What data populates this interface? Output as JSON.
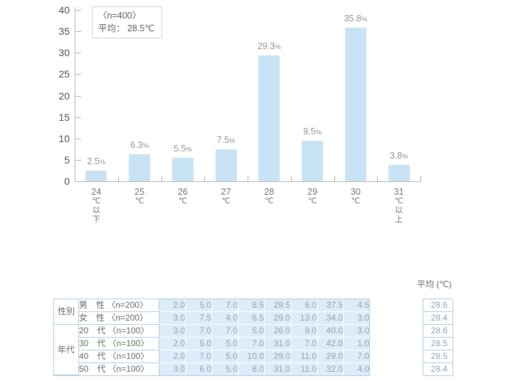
{
  "chart_data": {
    "type": "bar",
    "title": "",
    "legend_box": {
      "line1": "〈n=400〉",
      "line2": "平均： 28.5℃"
    },
    "categories": [
      "24℃以下",
      "25℃",
      "26℃",
      "27℃",
      "28℃",
      "29℃",
      "30℃",
      "31℃以上"
    ],
    "category_label_lines": [
      [
        "24",
        "℃",
        "以",
        "下"
      ],
      [
        "25",
        "℃"
      ],
      [
        "26",
        "℃"
      ],
      [
        "27",
        "℃"
      ],
      [
        "28",
        "℃"
      ],
      [
        "29",
        "℃"
      ],
      [
        "30",
        "℃"
      ],
      [
        "31",
        "℃",
        "以",
        "上"
      ]
    ],
    "values": [
      2.5,
      6.3,
      5.5,
      7.5,
      29.3,
      9.5,
      35.8,
      3.8
    ],
    "value_labels": [
      "2.5%",
      "6.3%",
      "5.5%",
      "7.5%",
      "29.3%",
      "9.5%",
      "35.8%",
      "3.8%"
    ],
    "unit": "%",
    "xlabel": "",
    "ylabel": "",
    "ylim": [
      0,
      40
    ],
    "yticks": [
      0,
      5,
      10,
      15,
      20,
      25,
      30,
      35,
      40
    ],
    "grid": false,
    "legend_position": "top-left"
  },
  "table": {
    "mean_header": "平均 (℃)",
    "row_groups": [
      {
        "label": "性別",
        "span": 2
      },
      {
        "label": "年代",
        "span": 4
      }
    ],
    "rows": [
      {
        "label": "男　性 〈n=200〉",
        "values": [
          "2.0",
          "5.0",
          "7.0",
          "8.5",
          "29.5",
          "6.0",
          "37.5",
          "4.5"
        ],
        "mean": "28.6"
      },
      {
        "label": "女　性 〈n=200〉",
        "values": [
          "3.0",
          "7.5",
          "4.0",
          "6.5",
          "29.0",
          "13.0",
          "34.0",
          "3.0"
        ],
        "mean": "28.4"
      },
      {
        "label": "20　代 〈n=100〉",
        "values": [
          "3.0",
          "7.0",
          "7.0",
          "5.0",
          "26.0",
          "9.0",
          "40.0",
          "3.0"
        ],
        "mean": "28.6"
      },
      {
        "label": "30　代 〈n=100〉",
        "values": [
          "2.0",
          "5.0",
          "5.0",
          "7.0",
          "31.0",
          "7.0",
          "42.0",
          "1.0"
        ],
        "mean": "28.5"
      },
      {
        "label": "40　代 〈n=100〉",
        "values": [
          "2.0",
          "7.0",
          "5.0",
          "10.0",
          "29.0",
          "11.0",
          "29.0",
          "7.0"
        ],
        "mean": "28.5"
      },
      {
        "label": "50　代 〈n=100〉",
        "values": [
          "3.0",
          "6.0",
          "5.0",
          "8.0",
          "31.0",
          "11.0",
          "32.0",
          "4.0"
        ],
        "mean": "28.4"
      }
    ]
  },
  "colors": {
    "bar_fill": "#c8e3f6",
    "axis": "#b3b3b3",
    "cell_bg": "#dcecf8",
    "table_border": "#aecde3",
    "value_label": "#8f8f8f"
  }
}
